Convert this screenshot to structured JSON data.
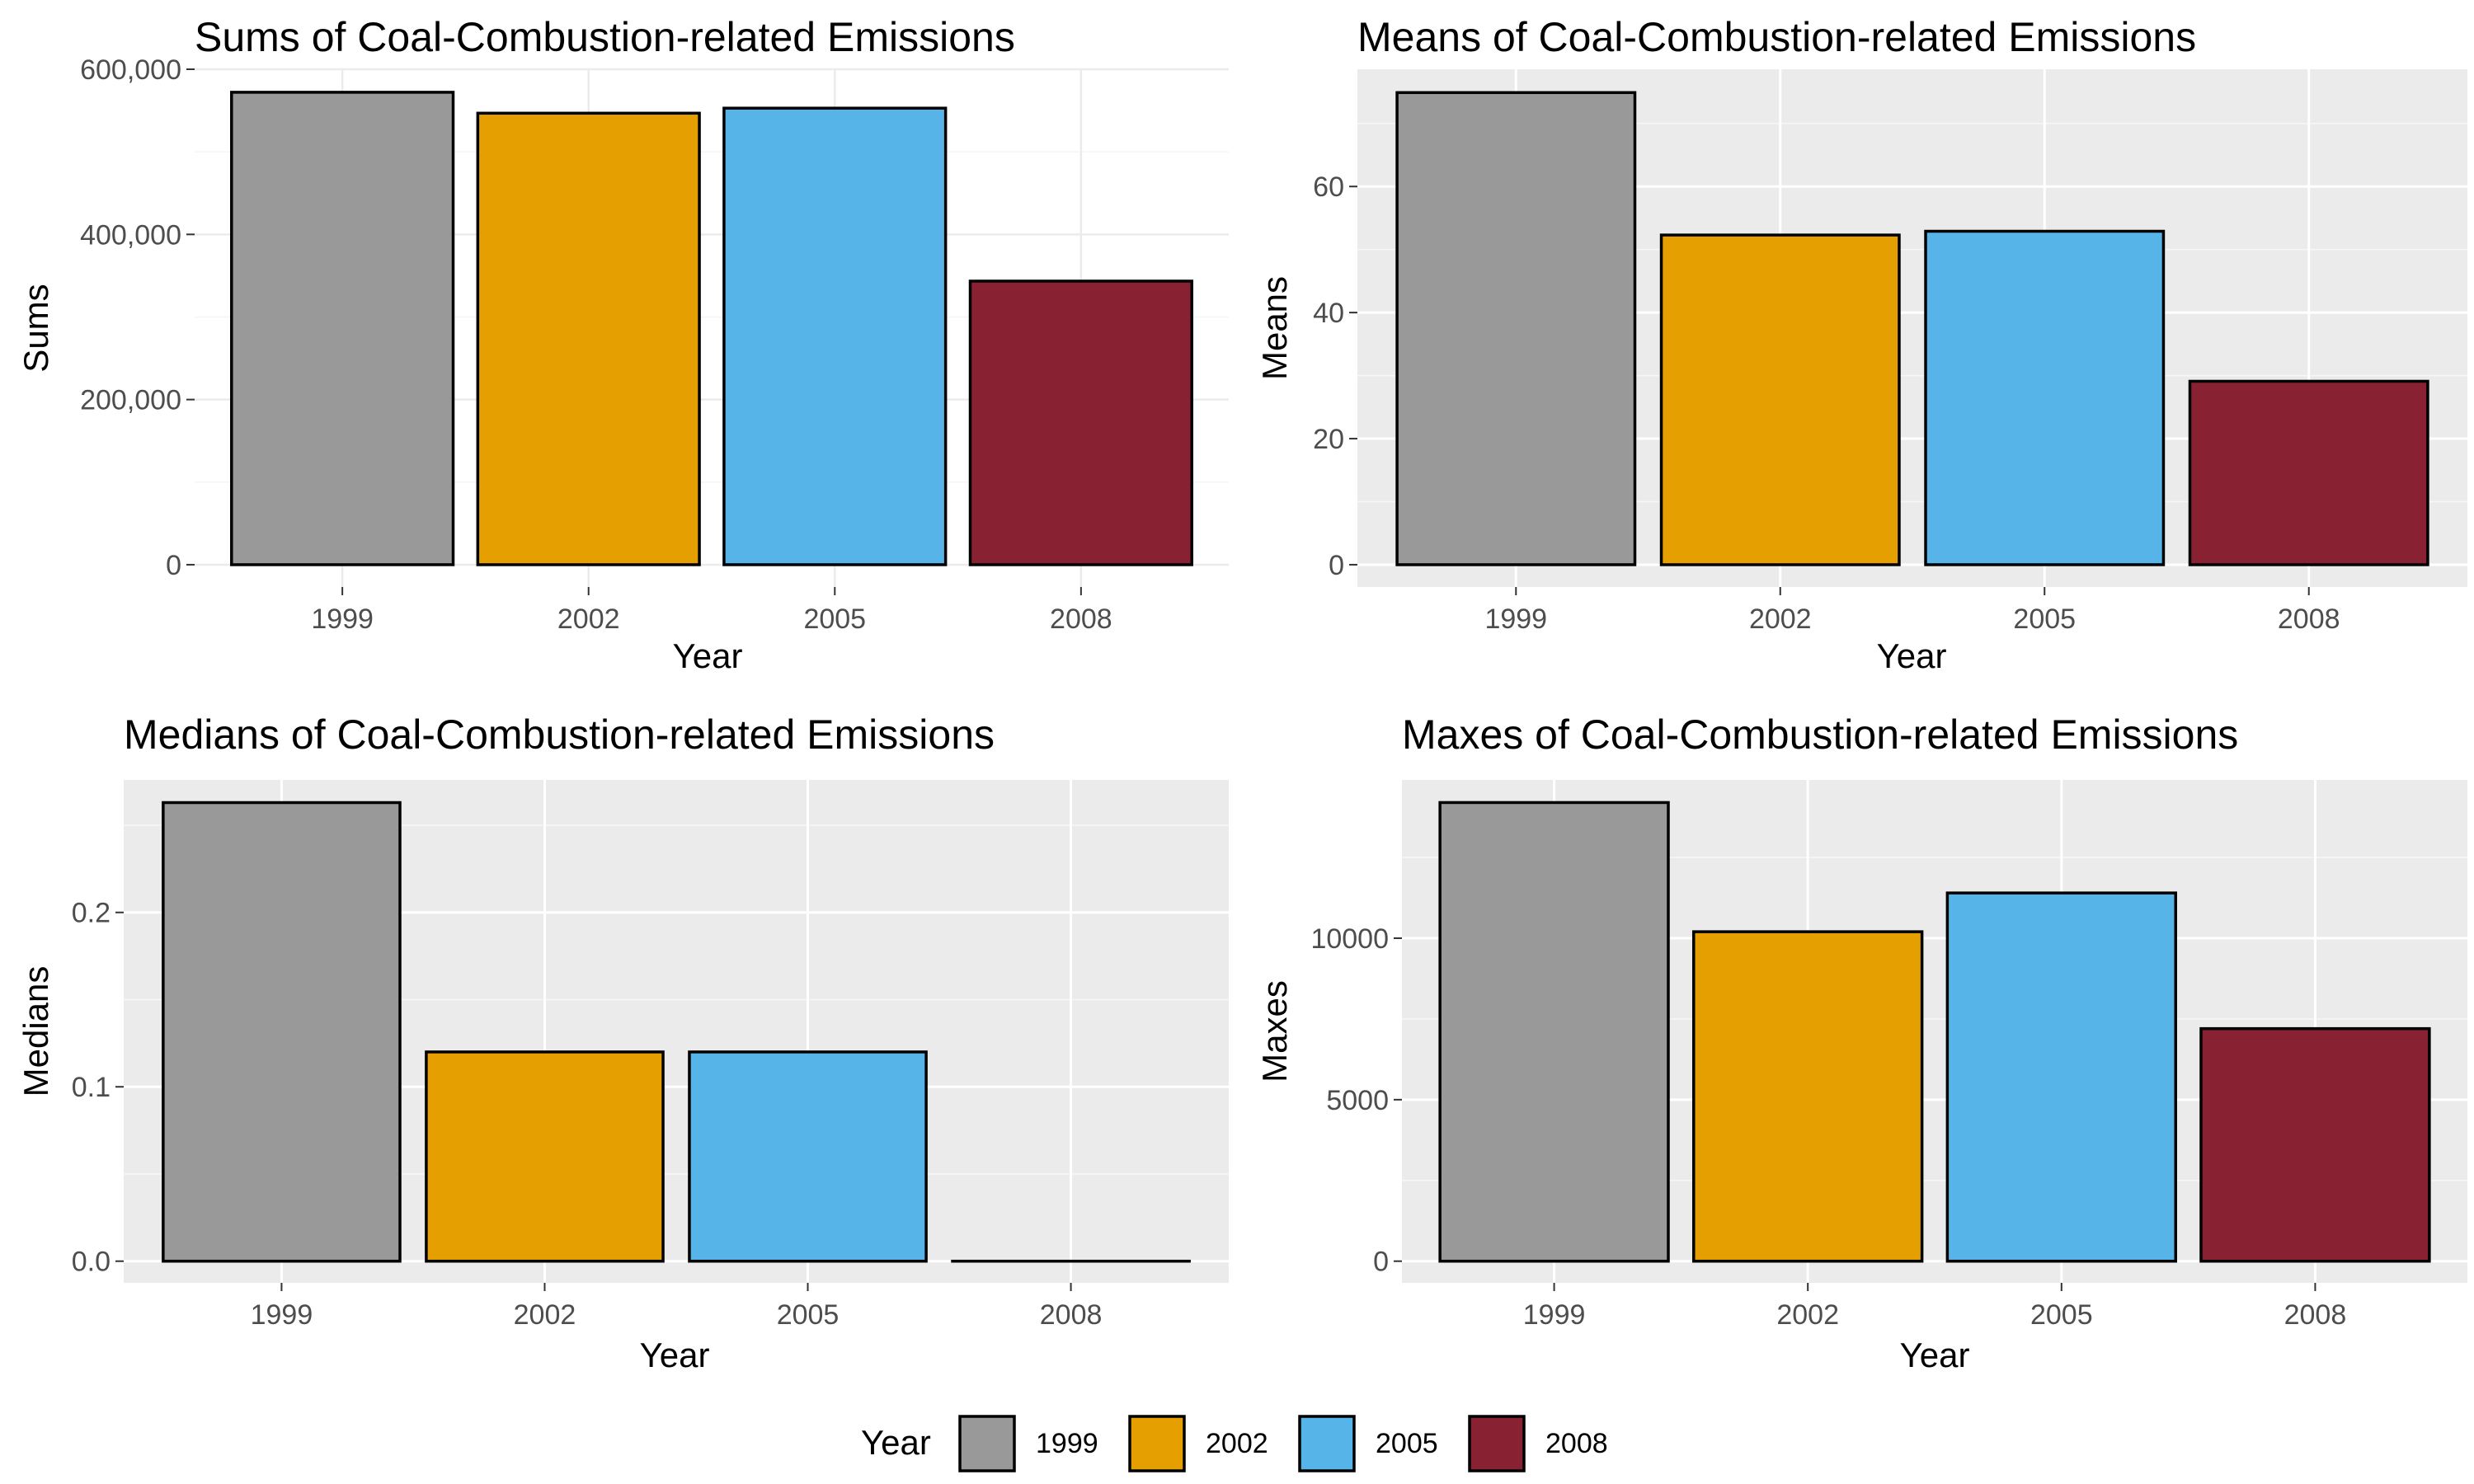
{
  "chart_data": [
    {
      "type": "bar",
      "title": "Sums of Coal-Combustion-related Emissions",
      "xlabel": "Year",
      "ylabel": "Sums",
      "categories": [
        "1999",
        "2002",
        "2005",
        "2008"
      ],
      "values": [
        572126,
        546789,
        552881,
        343432
      ],
      "ylim": [
        0,
        600000
      ],
      "yticks": [
        "0",
        "200,000",
        "400,000",
        "600,000"
      ],
      "ytick_values": [
        0,
        200000,
        400000,
        600000
      ],
      "theme": "light",
      "grid": true
    },
    {
      "type": "bar",
      "title": "Means of Coal-Combustion-related Emissions",
      "xlabel": "Year",
      "ylabel": "Means",
      "categories": [
        "1999",
        "2002",
        "2005",
        "2008"
      ],
      "values": [
        74.9,
        52.3,
        52.9,
        29.1
      ],
      "ylim": [
        0,
        78.6
      ],
      "yticks": [
        "0",
        "20",
        "40",
        "60"
      ],
      "ytick_values": [
        0,
        20,
        40,
        60
      ],
      "theme": "gray",
      "grid": true
    },
    {
      "type": "bar",
      "title": "Medians of Coal-Combustion-related Emissions",
      "xlabel": "Year",
      "ylabel": "Medians",
      "categories": [
        "1999",
        "2002",
        "2005",
        "2008"
      ],
      "values": [
        0.263,
        0.12,
        0.12,
        0.0
      ],
      "ylim": [
        0,
        0.276
      ],
      "yticks": [
        "0.0",
        "0.1",
        "0.2"
      ],
      "ytick_values": [
        0,
        0.1,
        0.2
      ],
      "theme": "gray",
      "grid": true
    },
    {
      "type": "bar",
      "title": "Maxes of Coal-Combustion-related Emissions",
      "xlabel": "Year",
      "ylabel": "Maxes",
      "categories": [
        "1999",
        "2002",
        "2005",
        "2008"
      ],
      "values": [
        14200,
        10200,
        11400,
        7200
      ],
      "ylim": [
        0,
        14900
      ],
      "yticks": [
        "0",
        "5000",
        "10000"
      ],
      "ytick_values": [
        0,
        5000,
        10000
      ],
      "theme": "gray",
      "grid": true
    }
  ],
  "legend": {
    "title": "Year",
    "placement": "bottom",
    "items": [
      {
        "label": "1999",
        "color": "#999999"
      },
      {
        "label": "2002",
        "color": "#E69F00"
      },
      {
        "label": "2005",
        "color": "#56B4E9"
      },
      {
        "label": "2008",
        "color": "#882233"
      }
    ]
  }
}
